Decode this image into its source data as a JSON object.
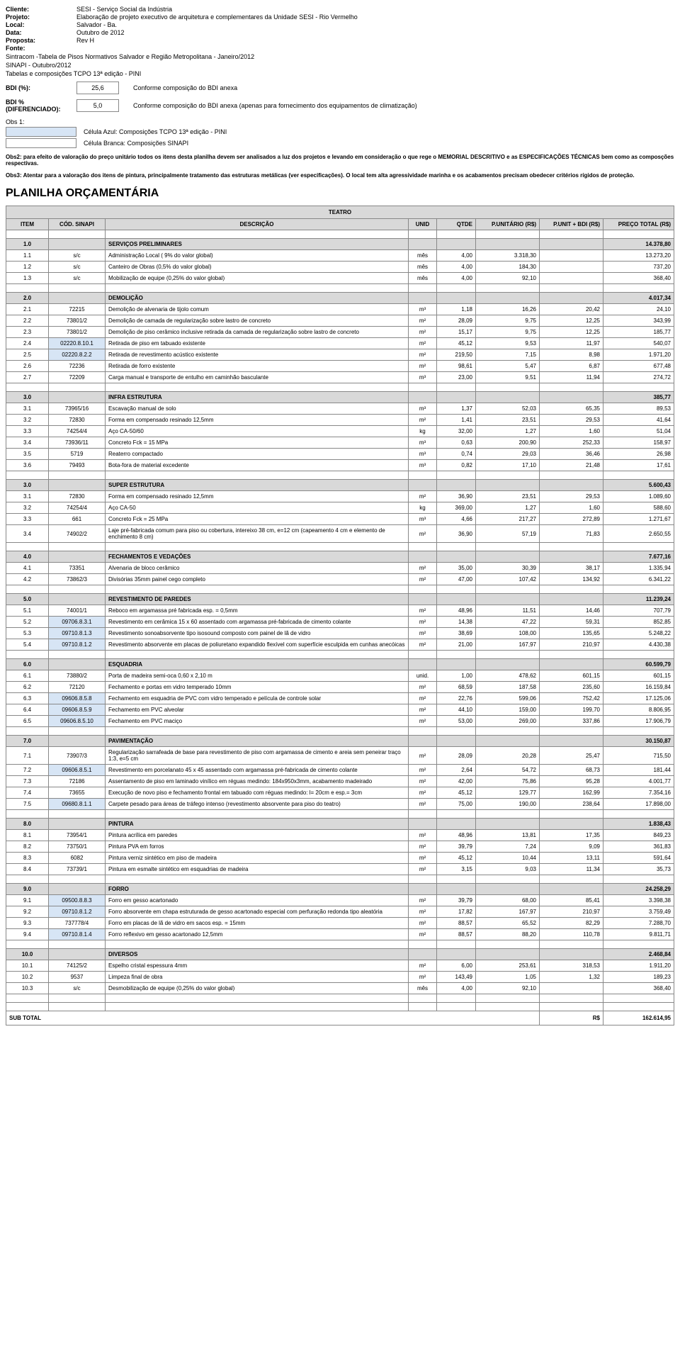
{
  "header": {
    "cliente_label": "Cliente:",
    "cliente": "SESI - Serviço Social da Indústria",
    "projeto_label": "Projeto:",
    "projeto": "Elaboração de projeto executivo de arquitetura e complementares da Unidade SESI - Rio Vermelho",
    "local_label": "Local:",
    "local": "Salvador - Ba.",
    "data_label": "Data:",
    "data": "Outubro de 2012",
    "proposta_label": "Proposta:",
    "proposta": "Rev H",
    "fonte_label": "Fonte:",
    "fonte1": "Sintracom -Tabela de Pisos Normativos Salvador e Região Metropolitana - Janeiro/2012",
    "fonte2": "SINAPI - Outubro/2012",
    "fonte3": "Tabelas e composições TCPO 13ª edição - PINI"
  },
  "bdi": {
    "bdi_label": "BDI (%):",
    "bdi_value": "25,6",
    "bdi_desc": "Conforme composição do BDI anexa",
    "bdi_dif_label": "BDI % (DIFERENCIADO):",
    "bdi_dif_value": "5,0",
    "bdi_dif_desc": "Conforme composição do BDI anexa (apenas para fornecimento dos equipamentos de climatização)"
  },
  "obs": {
    "obs1_label": "Obs 1:",
    "celula_azul": "Célula Azul: Composições TCPO 13ª edição - PINI",
    "celula_branca": "Célula Branca: Composições SINAPI",
    "obs2": "Obs2: para efeito de valoração do preço unitário todos os itens desta planilha devem ser analisados a luz dos projetos e levando em consideração o que rege o MEMORIAL DESCRITIVO e as ESPECIFICAÇÕES TÉCNICAS bem como as composções respectivas.",
    "obs3": "Obs3: Atentar para a valoração dos itens de pintura, principalmente tratamento das estruturas metálicas (ver especificações). O local tem alta agressividade marinha e os acabamentos precisam obedecer critérios rígidos de proteção."
  },
  "title": "PLANILHA ORÇAMENTÁRIA",
  "section_title": "TEATRO",
  "columns": {
    "item": "ITEM",
    "cod": "CÓD. SINAPI",
    "desc": "DESCRIÇÃO",
    "unid": "UNID",
    "qtde": "QTDE",
    "punit": "P.UNITÁRIO (R$)",
    "pbdi": "P.UNIT + BDI (R$)",
    "total": "PREÇO TOTAL (R$)"
  },
  "sections": [
    {
      "item": "1.0",
      "desc": "SERVIÇOS PRELIMINARES",
      "total": "14.378,80",
      "rows": [
        {
          "item": "1.1",
          "cod": "s/c",
          "desc": "Administração Local ( 9% do valor global)",
          "unid": "mês",
          "qtde": "4,00",
          "punit": "3.318,30",
          "pbdi": "",
          "total": "13.273,20"
        },
        {
          "item": "1.2",
          "cod": "s/c",
          "desc": "Canteiro de Obras (0,5% do valor global)",
          "unid": "mês",
          "qtde": "4,00",
          "punit": "184,30",
          "pbdi": "",
          "total": "737,20"
        },
        {
          "item": "1.3",
          "cod": "s/c",
          "desc": "Mobilização de equipe (0,25% do valor global)",
          "unid": "mês",
          "qtde": "4,00",
          "punit": "92,10",
          "pbdi": "",
          "total": "368,40"
        }
      ]
    },
    {
      "item": "2.0",
      "desc": "DEMOLIÇÃO",
      "total": "4.017,34",
      "rows": [
        {
          "item": "2.1",
          "cod": "72215",
          "desc": "Demolição de alvenaria de tijolo comum",
          "unid": "m³",
          "qtde": "1,18",
          "punit": "16,26",
          "pbdi": "20,42",
          "total": "24,10"
        },
        {
          "item": "2.2",
          "cod": "73801/2",
          "desc": "Demolição de camada de regularização sobre lastro de concreto",
          "unid": "m²",
          "qtde": "28,09",
          "punit": "9,75",
          "pbdi": "12,25",
          "total": "343,99"
        },
        {
          "item": "2.3",
          "cod": "73801/2",
          "desc": "Demolição de piso cerâmico inclusive retirada da camada de regularização sobre lastro de concreto",
          "unid": "m²",
          "qtde": "15,17",
          "punit": "9,75",
          "pbdi": "12,25",
          "total": "185,77"
        },
        {
          "item": "2.4",
          "cod": "02220.8.10.1",
          "blue": true,
          "desc": "Retirada de piso em tabuado existente",
          "unid": "m²",
          "qtde": "45,12",
          "punit": "9,53",
          "pbdi": "11,97",
          "total": "540,07"
        },
        {
          "item": "2.5",
          "cod": "02220.8.2.2",
          "blue": true,
          "desc": "Retirada de revestimento acústico existente",
          "unid": "m²",
          "qtde": "219,50",
          "punit": "7,15",
          "pbdi": "8,98",
          "total": "1.971,20"
        },
        {
          "item": "2.6",
          "cod": "72236",
          "desc": "Retirada de forro existente",
          "unid": "m²",
          "qtde": "98,61",
          "punit": "5,47",
          "pbdi": "6,87",
          "total": "677,48"
        },
        {
          "item": "2.7",
          "cod": "72209",
          "desc": "Carga manual e transporte de entulho em caminhão basculante",
          "unid": "m³",
          "qtde": "23,00",
          "punit": "9,51",
          "pbdi": "11,94",
          "total": "274,72"
        }
      ]
    },
    {
      "item": "3.0",
      "desc": "INFRA ESTRUTURA",
      "total": "385,77",
      "rows": [
        {
          "item": "3.1",
          "cod": "73965/16",
          "desc": "Escavação manual de solo",
          "unid": "m³",
          "qtde": "1,37",
          "punit": "52,03",
          "pbdi": "65,35",
          "total": "89,53"
        },
        {
          "item": "3.2",
          "cod": "72830",
          "desc": "Forma em compensado resinado 12,5mm",
          "unid": "m²",
          "qtde": "1,41",
          "punit": "23,51",
          "pbdi": "29,53",
          "total": "41,64"
        },
        {
          "item": "3.3",
          "cod": "74254/4",
          "desc": "Aço CA-50/60",
          "unid": "kg",
          "qtde": "32,00",
          "punit": "1,27",
          "pbdi": "1,60",
          "total": "51,04"
        },
        {
          "item": "3.4",
          "cod": "73936/11",
          "desc": "Concreto Fck = 15 MPa",
          "unid": "m³",
          "qtde": "0,63",
          "punit": "200,90",
          "pbdi": "252,33",
          "total": "158,97"
        },
        {
          "item": "3.5",
          "cod": "5719",
          "desc": "Reaterro compactado",
          "unid": "m³",
          "qtde": "0,74",
          "punit": "29,03",
          "pbdi": "36,46",
          "total": "26,98"
        },
        {
          "item": "3.6",
          "cod": "79493",
          "desc": "Bota-fora de material excedente",
          "unid": "m³",
          "qtde": "0,82",
          "punit": "17,10",
          "pbdi": "21,48",
          "total": "17,61"
        }
      ]
    },
    {
      "item": "3.0",
      "desc": "SUPER ESTRUTURA",
      "total": "5.600,43",
      "rows": [
        {
          "item": "3.1",
          "cod": "72830",
          "desc": "Forma em compensado resinado 12,5mm",
          "unid": "m²",
          "qtde": "36,90",
          "punit": "23,51",
          "pbdi": "29,53",
          "total": "1.089,60"
        },
        {
          "item": "3.2",
          "cod": "74254/4",
          "desc": "Aço CA-50",
          "unid": "kg",
          "qtde": "369,00",
          "punit": "1,27",
          "pbdi": "1,60",
          "total": "588,60"
        },
        {
          "item": "3.3",
          "cod": "661",
          "desc": "Concreto Fck = 25 MPa",
          "unid": "m³",
          "qtde": "4,66",
          "punit": "217,27",
          "pbdi": "272,89",
          "total": "1.271,67"
        },
        {
          "item": "3.4",
          "cod": "74902/2",
          "desc": "Laje pré-fabricada comum para piso ou cobertura, intereixo 38 cm, e=12 cm (capeamento 4 cm e elemento de enchimento 8 cm)",
          "unid": "m²",
          "qtde": "36,90",
          "punit": "57,19",
          "pbdi": "71,83",
          "total": "2.650,55"
        }
      ]
    },
    {
      "item": "4.0",
      "desc": "FECHAMENTOS E VEDAÇÕES",
      "total": "7.677,16",
      "rows": [
        {
          "item": "4.1",
          "cod": "73351",
          "desc": "Alvenaria de bloco cerâmico",
          "unid": "m²",
          "qtde": "35,00",
          "punit": "30,39",
          "pbdi": "38,17",
          "total": "1.335,94"
        },
        {
          "item": "4.2",
          "cod": "73862/3",
          "desc": "Divisórias 35mm painel cego completo",
          "unid": "m²",
          "qtde": "47,00",
          "punit": "107,42",
          "pbdi": "134,92",
          "total": "6.341,22"
        }
      ]
    },
    {
      "item": "5.0",
      "desc": "REVESTIMENTO DE PAREDES",
      "total": "11.239,24",
      "rows": [
        {
          "item": "5.1",
          "cod": "74001/1",
          "desc": "Reboco em argamassa pré fabricada esp. = 0,5mm",
          "unid": "m²",
          "qtde": "48,96",
          "punit": "11,51",
          "pbdi": "14,46",
          "total": "707,79"
        },
        {
          "item": "5.2",
          "cod": "09706.8.3.1",
          "blue": true,
          "desc": "Revestimento em cerâmica 15 x 60  assentado  com argamassa pré-fabricada de cimento colante",
          "unid": "m²",
          "qtde": "14,38",
          "punit": "47,22",
          "pbdi": "59,31",
          "total": "852,85"
        },
        {
          "item": "5.3",
          "cod": "09710.8.1.3",
          "blue": true,
          "desc": "Revestimento sonoabsorvente tipo isosound composto com painel de lã de vidro",
          "unid": "m²",
          "qtde": "38,69",
          "punit": "108,00",
          "pbdi": "135,65",
          "total": "5.248,22"
        },
        {
          "item": "5.4",
          "cod": "09710.8.1.2",
          "blue": true,
          "desc": "Revestimento absorvente em placas de poliuretano expandido flexível com superfície esculpida em cunhas anecóicas",
          "unid": "m²",
          "qtde": "21,00",
          "punit": "167,97",
          "pbdi": "210,97",
          "total": "4.430,38"
        }
      ]
    },
    {
      "item": "6.0",
      "desc": "ESQUADRIA",
      "total": "60.599,79",
      "rows": [
        {
          "item": "6.1",
          "cod": "73880/2",
          "desc": "Porta de madeira semi-oca 0,60 x 2,10 m",
          "unid": "unid.",
          "qtde": "1,00",
          "punit": "478,62",
          "pbdi": "601,15",
          "total": "601,15"
        },
        {
          "item": "6.2",
          "cod": "72120",
          "desc": "Fechamento e portas em vidro temperado 10mm",
          "unid": "m²",
          "qtde": "68,59",
          "punit": "187,58",
          "pbdi": "235,60",
          "total": "16.159,84"
        },
        {
          "item": "6.3",
          "cod": "09606.8.5.8",
          "blue": true,
          "desc": "Fechamento em esquadria de PVC com vidro temperado e película de controle solar",
          "unid": "m²",
          "qtde": "22,76",
          "punit": "599,06",
          "pbdi": "752,42",
          "total": "17.125,06"
        },
        {
          "item": "6.4",
          "cod": "09606.8.5.9",
          "blue": true,
          "desc": "Fechamento em PVC alveolar",
          "unid": "m²",
          "qtde": "44,10",
          "punit": "159,00",
          "pbdi": "199,70",
          "total": "8.806,95"
        },
        {
          "item": "6.5",
          "cod": "09606.8.5.10",
          "blue": true,
          "desc": "Fechamento em PVC maciço",
          "unid": "m²",
          "qtde": "53,00",
          "punit": "269,00",
          "pbdi": "337,86",
          "total": "17.906,79"
        }
      ]
    },
    {
      "item": "7.0",
      "desc": "PAVIMENTAÇÃO",
      "total": "30.150,87",
      "rows": [
        {
          "item": "7.1",
          "cod": "73907/3",
          "desc": "Regularização sarrafeada de base para revestimento de piso com argamassa de cimento e areia sem peneirar traço 1:3, e=5 cm",
          "unid": "m²",
          "qtde": "28,09",
          "punit": "20,28",
          "pbdi": "25,47",
          "total": "715,50"
        },
        {
          "item": "7.2",
          "cod": "09606.8.5.1",
          "blue": true,
          "desc": "Revestimento em porcelanato 45 x 45  assentado  com argamassa pré-fabricada de cimento colante",
          "unid": "m²",
          "qtde": "2,64",
          "punit": "54,72",
          "pbdi": "68,73",
          "total": "181,44"
        },
        {
          "item": "7.3",
          "cod": "72186",
          "desc": "Assentamento de piso em laminado vinílico em réguas medindo: 184x950x3mm, acabamento madeirado",
          "unid": "m²",
          "qtde": "42,00",
          "punit": "75,86",
          "pbdi": "95,28",
          "total": "4.001,77"
        },
        {
          "item": "7.4",
          "cod": "73655",
          "desc": "Execução de novo piso e fechamento frontal em tabuado com réguas medindo: l= 20cm e esp.= 3cm",
          "unid": "m²",
          "qtde": "45,12",
          "punit": "129,77",
          "pbdi": "162,99",
          "total": "7.354,16"
        },
        {
          "item": "7.5",
          "cod": "09680.8.1.1",
          "blue": true,
          "desc": "Carpete pesado para áreas de tráfego intenso (revestimento absorvente para piso do teatro)",
          "unid": "m²",
          "qtde": "75,00",
          "punit": "190,00",
          "pbdi": "238,64",
          "total": "17.898,00"
        }
      ]
    },
    {
      "item": "8.0",
      "desc": "PINTURA",
      "total": "1.838,43",
      "rows": [
        {
          "item": "8.1",
          "cod": "73954/1",
          "desc": "Pintura acrílica em paredes",
          "unid": "m²",
          "qtde": "48,96",
          "punit": "13,81",
          "pbdi": "17,35",
          "total": "849,23"
        },
        {
          "item": "8.2",
          "cod": "73750/1",
          "desc": "Pintura PVA em forros",
          "unid": "m²",
          "qtde": "39,79",
          "punit": "7,24",
          "pbdi": "9,09",
          "total": "361,83"
        },
        {
          "item": "8.3",
          "cod": "6082",
          "desc": "Pintura verniz sintético em piso de madeira",
          "unid": "m²",
          "qtde": "45,12",
          "punit": "10,44",
          "pbdi": "13,11",
          "total": "591,64"
        },
        {
          "item": "8.4",
          "cod": "73739/1",
          "desc": "Pintura em esmalte sintético em esquadrias de madeira",
          "unid": "m²",
          "qtde": "3,15",
          "punit": "9,03",
          "pbdi": "11,34",
          "total": "35,73"
        }
      ]
    },
    {
      "item": "9.0",
      "desc": "FORRO",
      "total": "24.258,29",
      "rows": [
        {
          "item": "9.1",
          "cod": "09500.8.8.3",
          "blue": true,
          "desc": "Forro em gesso acartonado",
          "unid": "m²",
          "qtde": "39,79",
          "punit": "68,00",
          "pbdi": "85,41",
          "total": "3.398,38"
        },
        {
          "item": "9.2",
          "cod": "09710.8.1.2",
          "blue": true,
          "desc": "Forro absorvente em chapa estruturada de gesso acartonado especial com perfuração redonda tipo aleatória",
          "unid": "m²",
          "qtde": "17,82",
          "punit": "167,97",
          "pbdi": "210,97",
          "total": "3.759,49"
        },
        {
          "item": "9.3",
          "cod": "737778/4",
          "desc": "Forro em placas de lã de vidro em sacos esp. = 15mm",
          "unid": "m²",
          "qtde": "88,57",
          "punit": "65,52",
          "pbdi": "82,29",
          "total": "7.288,70"
        },
        {
          "item": "9.4",
          "cod": "09710.8.1.4",
          "blue": true,
          "desc": "Forro reflexivo em gesso acartonado 12,5mm",
          "unid": "m²",
          "qtde": "88,57",
          "punit": "88,20",
          "pbdi": "110,78",
          "total": "9.811,71"
        }
      ]
    },
    {
      "item": "10.0",
      "desc": "DIVERSOS",
      "total": "2.468,84",
      "rows": [
        {
          "item": "10.1",
          "cod": "74125/2",
          "desc": "Espelho cristal espessura 4mm",
          "unid": "m²",
          "qtde": "6,00",
          "punit": "253,61",
          "pbdi": "318,53",
          "total": "1.911,20"
        },
        {
          "item": "10.2",
          "cod": "9537",
          "desc": "Limpeza final de obra",
          "unid": "m²",
          "qtde": "143,49",
          "punit": "1,05",
          "pbdi": "1,32",
          "total": "189,23"
        },
        {
          "item": "10.3",
          "cod": "s/c",
          "desc": "Desmobilização de equipe (0,25% do valor global)",
          "unid": "mês",
          "qtde": "4,00",
          "punit": "92,10",
          "pbdi": "",
          "total": "368,40"
        }
      ]
    }
  ],
  "subtotal": {
    "label": "SUB TOTAL",
    "currency": "R$",
    "value": "162.614,95"
  }
}
